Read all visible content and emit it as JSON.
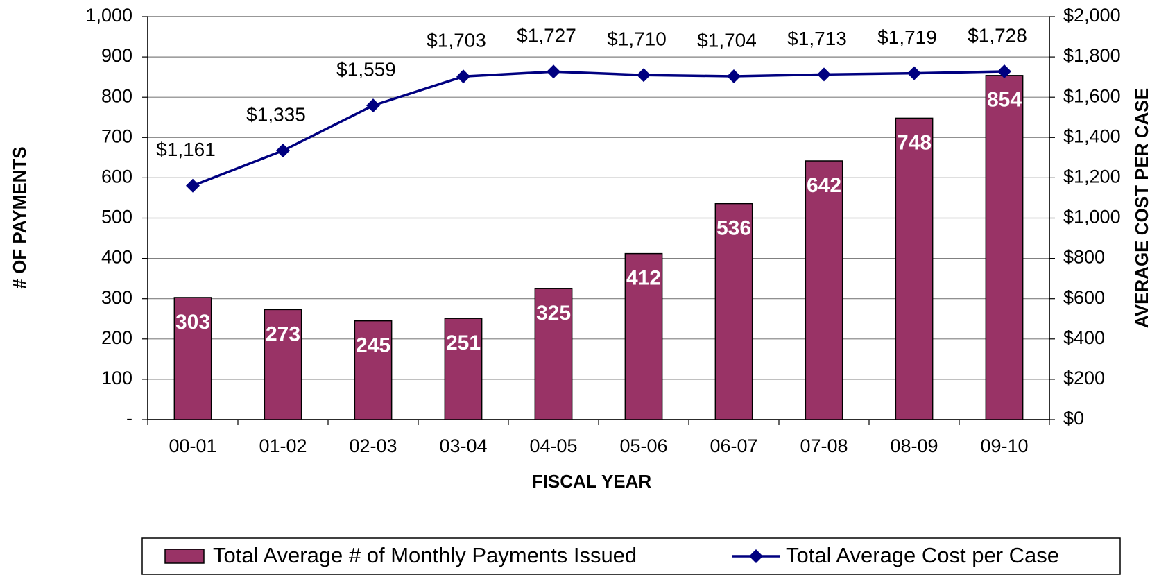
{
  "chart_data": {
    "type": "bar",
    "x_label": "FISCAL YEAR",
    "y_label": "# OF PAYMENTS",
    "y2_label": "AVERAGE COST PER CASE",
    "categories": [
      "00-01",
      "01-02",
      "02-03",
      "03-04",
      "04-05",
      "05-06",
      "06-07",
      "07-08",
      "08-09",
      "09-10"
    ],
    "series": [
      {
        "name": "Total Average # of Monthly Payments Issued",
        "type": "bar",
        "color": "#993366",
        "values": [
          303,
          273,
          245,
          251,
          325,
          412,
          536,
          642,
          748,
          854
        ]
      },
      {
        "name": "Total Average Cost per Case",
        "type": "line",
        "axis": "y2",
        "color": "#000080",
        "values": [
          1161,
          1335,
          1559,
          1703,
          1727,
          1710,
          1704,
          1713,
          1719,
          1728
        ],
        "value_labels": [
          "$1,161",
          "$1,335",
          "$1,559",
          "$1,703",
          "$1,727",
          "$1,710",
          "$1,704",
          "$1,713",
          "$1,719",
          "$1,728"
        ]
      }
    ],
    "ylim": [
      0,
      1000
    ],
    "yticks": [
      {
        "value": 0,
        "label": "-"
      },
      100,
      200,
      300,
      400,
      500,
      600,
      700,
      800,
      900,
      {
        "value": 1000,
        "label": "1,000"
      }
    ],
    "y2lim": [
      0,
      2000
    ],
    "y2ticks": [
      {
        "value": 0,
        "label": "$0"
      },
      {
        "value": 200,
        "label": "$200"
      },
      {
        "value": 400,
        "label": "$400"
      },
      {
        "value": 600,
        "label": "$600"
      },
      {
        "value": 800,
        "label": "$800"
      },
      {
        "value": 1000,
        "label": "$1,000"
      },
      {
        "value": 1200,
        "label": "$1,200"
      },
      {
        "value": 1400,
        "label": "$1,400"
      },
      {
        "value": 1600,
        "label": "$1,600"
      },
      {
        "value": 1800,
        "label": "$1,800"
      },
      {
        "value": 2000,
        "label": "$2,000"
      }
    ],
    "grid": true,
    "legend": "bottom"
  }
}
